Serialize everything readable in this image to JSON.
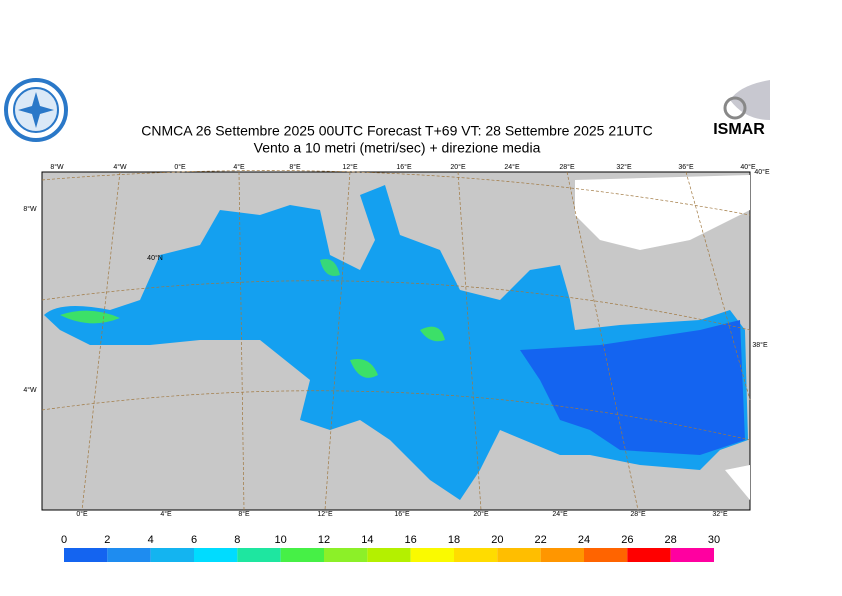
{
  "header": {
    "title": "CNMCA 26 Settembre 2025 00UTC Forecast T+69 VT: 28 Settembre 2025 21UTC",
    "subtitle": "Vento a 10 metri (metri/sec) + direzione media",
    "logo_right": "ISMAR"
  },
  "map": {
    "top_labels": [
      "8°W",
      "4°W",
      "0°E",
      "4°E",
      "8°E",
      "12°E",
      "16°E",
      "20°E",
      "24°E",
      "28°E",
      "32°E",
      "36°E",
      "40°E"
    ],
    "bottom_labels": [
      "0°E",
      "4°E",
      "8°E",
      "12°E",
      "16°E",
      "20°E",
      "24°E",
      "28°E",
      "32°E"
    ],
    "left_labels": [
      "8°W",
      "4°W"
    ],
    "inner_labels": [
      "40°N",
      "38°E",
      "40°E"
    ]
  },
  "colorbar": {
    "ticks": [
      0,
      2,
      4,
      6,
      8,
      10,
      12,
      14,
      16,
      18,
      20,
      22,
      24,
      26,
      28,
      30
    ],
    "colors": [
      "#1464f0",
      "#1e8cf0",
      "#14b4f0",
      "#00dcff",
      "#1ee6a0",
      "#46f046",
      "#8cf028",
      "#b4f000",
      "#fafa00",
      "#ffdc00",
      "#ffbe00",
      "#ff9600",
      "#ff6400",
      "#ff0000",
      "#ff00a0"
    ]
  }
}
